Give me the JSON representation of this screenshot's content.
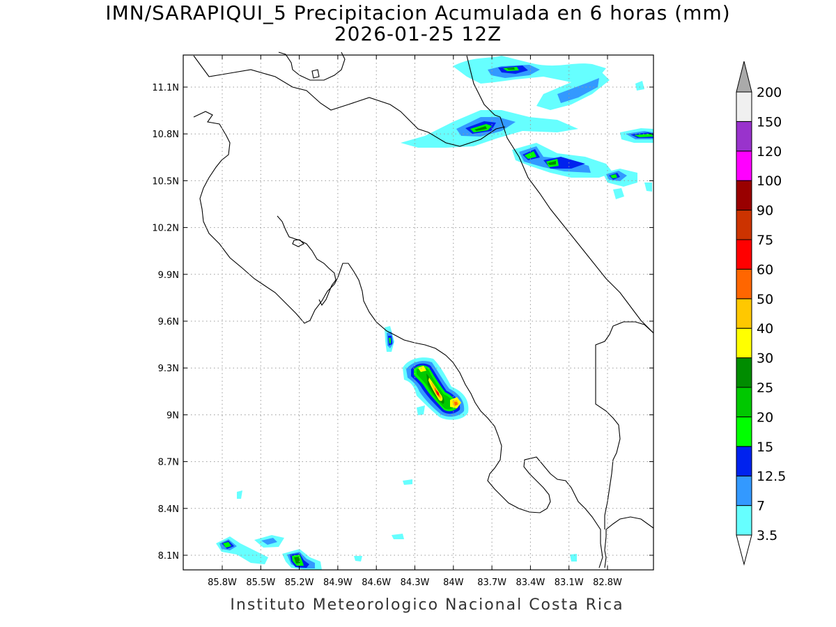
{
  "header": {
    "title": "IMN/SARAPIQUI_5 Precipitacion Acumulada en 6 horas (mm)",
    "subtitle": "2026-01-25 12Z"
  },
  "footer": {
    "credit": "Instituto Meteorologico Nacional Costa Rica"
  },
  "map": {
    "lat_ticks": [
      "11.1N",
      "10.8N",
      "10.5N",
      "10.2N",
      "9.9N",
      "9.6N",
      "9.3N",
      "9N",
      "8.7N",
      "8.4N",
      "8.1N"
    ],
    "lon_ticks": [
      "85.8W",
      "85.5W",
      "85.2W",
      "84.9W",
      "84.6W",
      "84.3W",
      "84W",
      "83.7W",
      "83.4W",
      "83.1W",
      "82.8W"
    ],
    "grid": "dotted",
    "coastline_color": "#000000"
  },
  "colorbar": {
    "levels": [
      "3.5",
      "7",
      "12.5",
      "15",
      "20",
      "25",
      "30",
      "40",
      "50",
      "60",
      "75",
      "90",
      "100",
      "120",
      "150",
      "200"
    ],
    "colors": [
      "#66ffff",
      "#3399ff",
      "#0022ee",
      "#00ff00",
      "#00c800",
      "#008c00",
      "#ffff00",
      "#ffc800",
      "#ff6600",
      "#ff0000",
      "#cc3300",
      "#990000",
      "#ff00ff",
      "#9933cc",
      "#f0f0f0",
      "#aaaaaa"
    ]
  }
}
